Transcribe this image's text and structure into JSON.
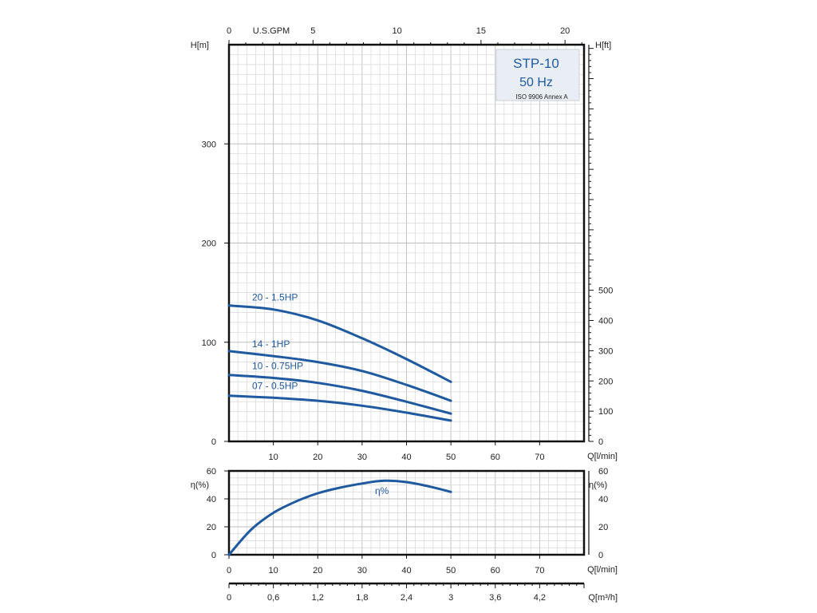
{
  "chart_data": [
    {
      "type": "line",
      "name": "head",
      "title_box": {
        "model": "STP-10",
        "freq": "50 Hz",
        "standard": "ISO 9906 Annex A"
      },
      "xlabel": "Q[l/min]",
      "ylabel_left": "H[m]",
      "ylabel_right": "H[ft]",
      "xlabel_top": "U.S.GPM",
      "xlim": [
        0,
        80
      ],
      "ylim": [
        0,
        400
      ],
      "x_ticks": [
        10,
        20,
        30,
        40,
        50,
        60,
        70
      ],
      "x_zero_label": "0",
      "y_ticks": [
        0,
        100,
        200,
        300
      ],
      "top_ticks": [
        0,
        5,
        10,
        15,
        20
      ],
      "top_range_gpm": [
        0,
        21.13
      ],
      "right_ticks": [
        0,
        100,
        200,
        300,
        400,
        500
      ],
      "right_range_ft": [
        0,
        1312.3
      ],
      "series": [
        {
          "name": "20 - 1.5HP",
          "x": [
            0,
            10,
            20,
            30,
            40,
            50
          ],
          "y": [
            137,
            133,
            122,
            104,
            83,
            60
          ]
        },
        {
          "name": "14 - 1HP",
          "x": [
            0,
            10,
            20,
            30,
            40,
            50
          ],
          "y": [
            91,
            86,
            80,
            71,
            57,
            41
          ]
        },
        {
          "name": "10 - 0.75HP",
          "x": [
            0,
            10,
            20,
            30,
            40,
            50
          ],
          "y": [
            67,
            64,
            59,
            51,
            40,
            28
          ]
        },
        {
          "name": "07 - 0.5HP",
          "x": [
            0,
            10,
            20,
            30,
            40,
            50
          ],
          "y": [
            46,
            44,
            41,
            36,
            29,
            21
          ]
        }
      ],
      "grid": true
    },
    {
      "type": "line",
      "name": "efficiency",
      "xlabel": "Q[l/min]",
      "ylabel_left": "η(%)",
      "ylabel_right": "η(%)",
      "xlim": [
        0,
        80
      ],
      "ylim": [
        0,
        60
      ],
      "x_ticks": [
        0,
        10,
        20,
        30,
        40,
        50,
        60,
        70
      ],
      "y_ticks": [
        0,
        20,
        40,
        60
      ],
      "series": [
        {
          "name": "η%",
          "x": [
            0,
            5,
            10,
            15,
            20,
            25,
            30,
            35,
            40,
            45,
            50
          ],
          "y": [
            0,
            18,
            30,
            38,
            44,
            48,
            51,
            53,
            52,
            49,
            45
          ]
        }
      ],
      "grid": true
    },
    {
      "type": "axis",
      "name": "flow-m3h",
      "xlabel": "Q[m³/h]",
      "xlim": [
        0,
        4.8
      ],
      "tick_labels": [
        "0",
        "0,6",
        "1,2",
        "1,8",
        "2,4",
        "3",
        "3,6",
        "4,2"
      ],
      "tick_values": [
        0,
        0.6,
        1.2,
        1.8,
        2.4,
        3,
        3.6,
        4.2
      ]
    }
  ]
}
